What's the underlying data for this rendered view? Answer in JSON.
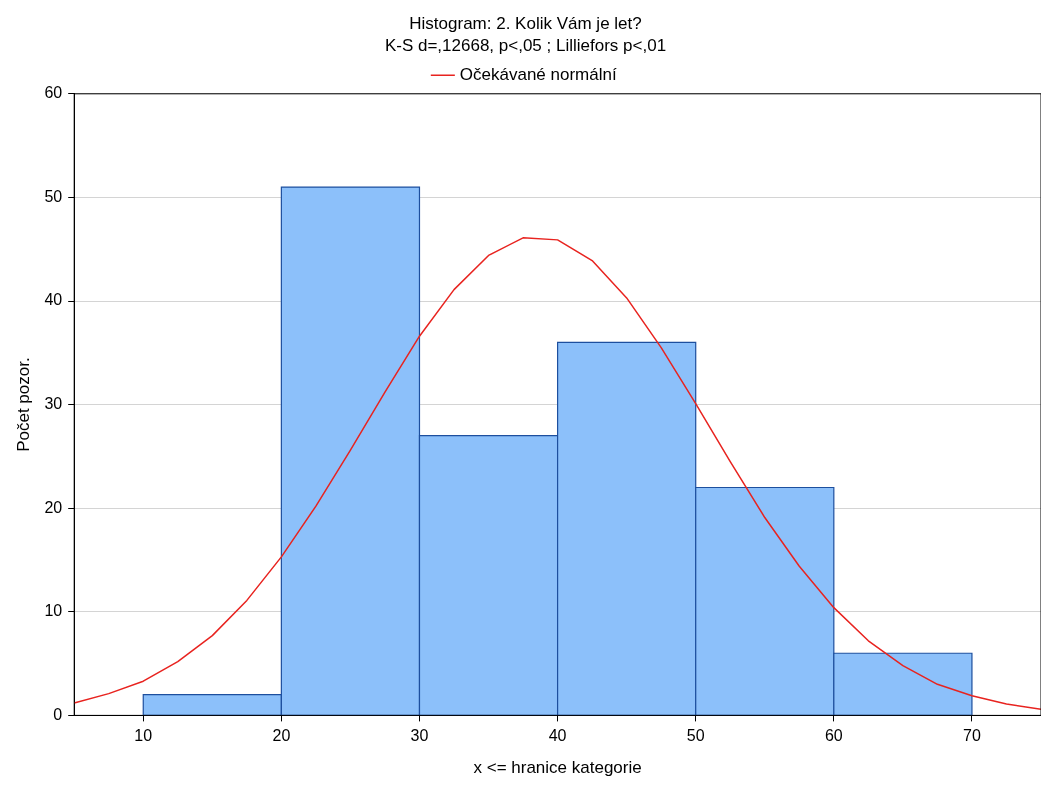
{
  "chart_data": {
    "type": "histogram",
    "title": "Histogram: 2. Kolik Vám je let?",
    "subtitle": "K-S d=,12668, p<,05 ; Lilliefors p<,01",
    "xlabel": "x <= hranice kategorie",
    "ylabel": "Počet pozor.",
    "bins": [
      10,
      20,
      30,
      40,
      50,
      60,
      70
    ],
    "values": [
      2,
      51,
      27,
      36,
      22,
      6
    ],
    "color": "#8cc0fa",
    "series": [
      {
        "type": "line",
        "name": "Očekávané normální",
        "color": "#e8231f",
        "x": [
          5,
          7.5,
          10,
          12.5,
          15,
          17.5,
          20,
          22.5,
          25,
          27.5,
          30,
          32.5,
          35,
          37.5,
          40,
          42.5,
          45,
          47.5,
          50,
          52.5,
          55,
          57.5,
          60,
          62.5,
          65,
          67.5,
          70,
          72.5,
          75
        ],
        "values": [
          1.2,
          2.1,
          3.3,
          5.2,
          7.7,
          11.1,
          15.3,
          20.2,
          25.6,
          31.2,
          36.6,
          41.1,
          44.4,
          46.1,
          45.9,
          43.9,
          40.3,
          35.5,
          30.1,
          24.5,
          19.1,
          14.4,
          10.4,
          7.2,
          4.8,
          3.0,
          1.9,
          1.1,
          0.6
        ]
      }
    ],
    "xlim": [
      5,
      75
    ],
    "ylim": [
      0,
      60
    ],
    "xticks": [
      10,
      20,
      30,
      40,
      50,
      60,
      70
    ],
    "yticks": [
      0,
      10,
      20,
      30,
      40,
      50,
      60
    ],
    "grid": "y",
    "legend": "top"
  }
}
